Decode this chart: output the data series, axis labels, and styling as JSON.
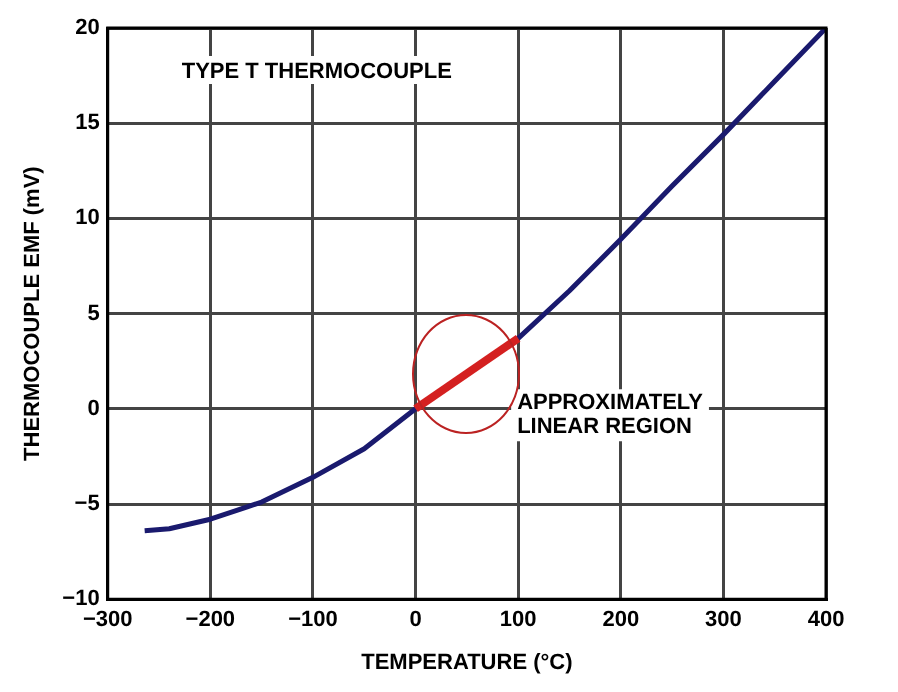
{
  "chart_data": {
    "type": "line",
    "title": "TYPE T THERMOCOUPLE",
    "xlabel": "TEMPERATURE (°C)",
    "ylabel": "THERMOCOUPLE EMF (mV)",
    "annotations": [
      "APPROXIMATELY\nLINEAR REGION"
    ],
    "series": [
      {
        "color": "#1a1a6e",
        "x": [
          -264,
          -240,
          -200,
          -150,
          -100,
          -50,
          0,
          50,
          100,
          150,
          200,
          250,
          300,
          350,
          400
        ],
        "values": [
          -6.4,
          -6.3,
          -5.8,
          -4.9,
          -3.6,
          -2.1,
          0,
          null,
          3.7,
          6.2,
          8.9,
          11.7,
          14.4,
          17.2,
          20
        ]
      },
      {
        "color": "#d42020",
        "x": [
          0,
          100
        ],
        "values": [
          0,
          3.7
        ]
      }
    ],
    "xlim": [
      -300,
      400
    ],
    "xticks": [
      -300,
      -200,
      -100,
      0,
      100,
      200,
      300,
      400
    ],
    "ylim": [
      -10,
      20
    ],
    "yticks": [
      -10,
      -5,
      0,
      5,
      10,
      15,
      20
    ],
    "grid": true,
    "legend": false,
    "marker": "none",
    "line_style": "solid"
  }
}
